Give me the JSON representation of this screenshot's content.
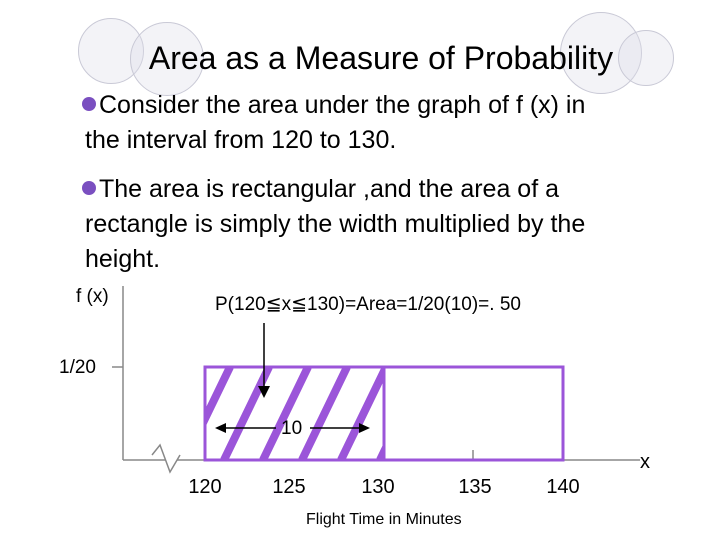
{
  "slide": {
    "title": "Area as a Measure of Probability",
    "bullets": [
      {
        "lines": [
          "Consider the area under the graph of f (x) in",
          "the interval from 120 to 130."
        ]
      },
      {
        "lines": [
          "The area is rectangular ,and the area of a",
          "rectangle is simply the width multiplied by the",
          "height."
        ]
      }
    ],
    "accent_color": "#9b55d9",
    "bullet_color": "#7a4fc0"
  },
  "chart_data": {
    "type": "area",
    "ylabel": "f (x)",
    "xlabel": "Flight Time in Minutes",
    "x_axis_symbol": "x",
    "y_tick_label": "1/20",
    "y_value": 0.05,
    "x_ticks": [
      "120",
      "125",
      "130",
      "135",
      "140"
    ],
    "uniform_range": [
      120,
      140
    ],
    "shaded_range": [
      120,
      130
    ],
    "annotation": "P(120≦x≦130)=Area=1/20(10)=. 50",
    "width_label": "10",
    "width_value": 10,
    "probability": 0.5
  }
}
